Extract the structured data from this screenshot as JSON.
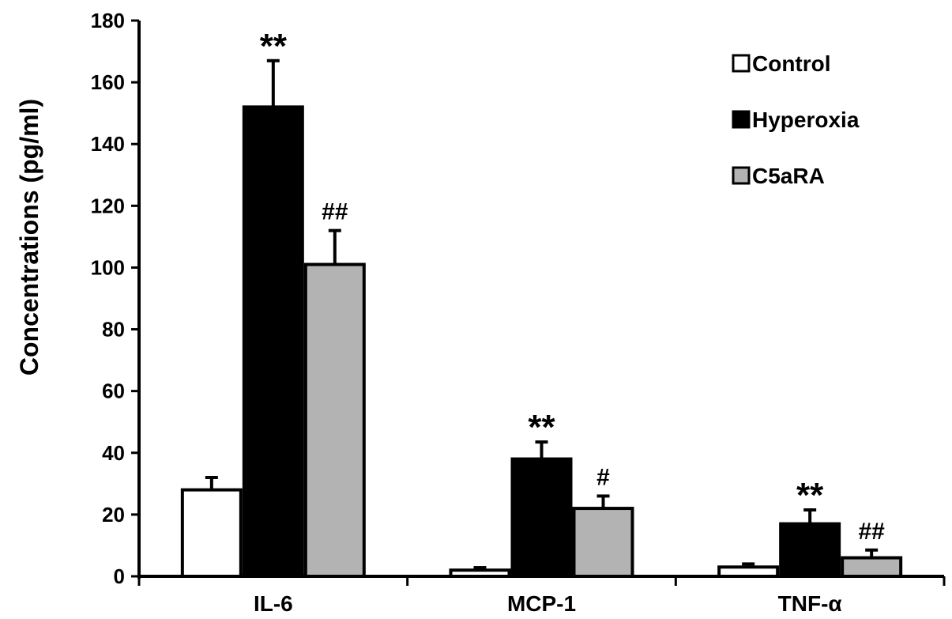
{
  "chart_data": {
    "type": "bar",
    "categories": [
      "IL-6",
      "MCP-1",
      "TNF-α"
    ],
    "ylabel": "Concentrations (pg/ml)",
    "xlabel": "",
    "ylim": [
      0,
      180
    ],
    "yticks": [
      0,
      20,
      40,
      60,
      80,
      100,
      120,
      140,
      160,
      180
    ],
    "legend_position": "top-right",
    "series": [
      {
        "name": "Control",
        "color": "#ffffff",
        "values": [
          28,
          2,
          3
        ],
        "errors": [
          4,
          0.8,
          1
        ]
      },
      {
        "name": "Hyperoxia",
        "color": "#000000",
        "values": [
          152,
          38,
          17
        ],
        "errors": [
          15,
          5.5,
          4.5
        ]
      },
      {
        "name": "C5aRA",
        "color": "#b3b3b3",
        "values": [
          101,
          22,
          6
        ],
        "errors": [
          11,
          4,
          2.5
        ]
      }
    ],
    "annotations": [
      {
        "category": 0,
        "series": 1,
        "text": "**"
      },
      {
        "category": 0,
        "series": 2,
        "text": "##"
      },
      {
        "category": 1,
        "series": 1,
        "text": "**"
      },
      {
        "category": 1,
        "series": 2,
        "text": "#"
      },
      {
        "category": 2,
        "series": 1,
        "text": "**"
      },
      {
        "category": 2,
        "series": 2,
        "text": "##"
      }
    ]
  }
}
